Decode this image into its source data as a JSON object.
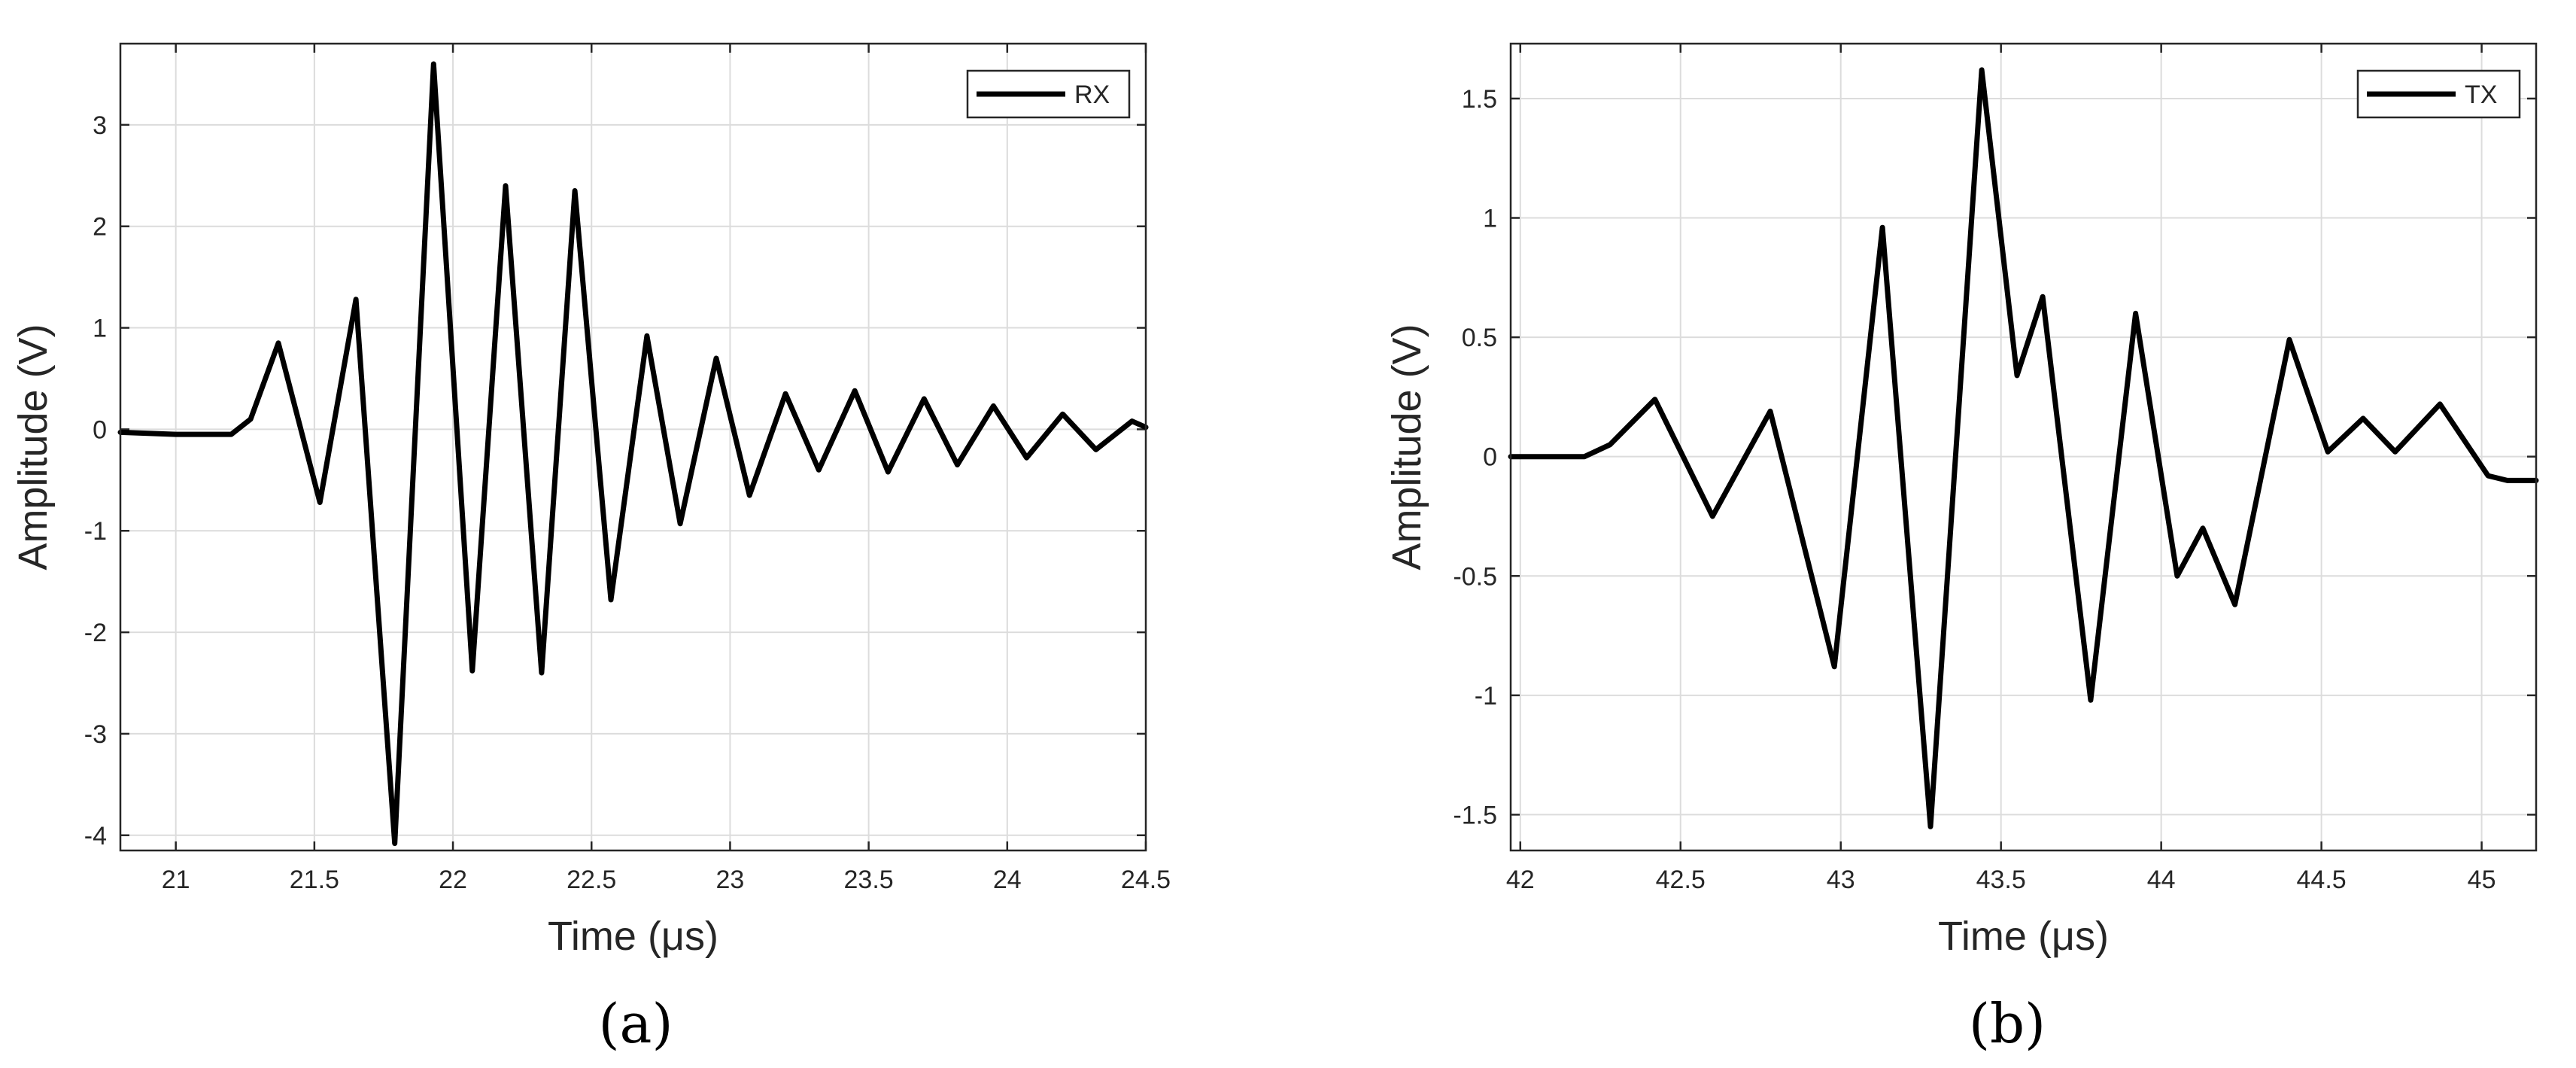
{
  "colors": {
    "line": "#000000",
    "grid": "#dcdcdc",
    "axis": "#262626"
  },
  "chart_data": [
    {
      "type": "line",
      "panel_label": "(a)",
      "xlabel": "Time (μs)",
      "ylabel": "Amplitude (V)",
      "xlim": [
        20.8,
        24.5
      ],
      "ylim": [
        -4.15,
        3.8
      ],
      "xticks": [
        21,
        21.5,
        22,
        22.5,
        23,
        23.5,
        24,
        24.5
      ],
      "xtick_labels": [
        "21",
        "21.5",
        "22",
        "22.5",
        "23",
        "23.5",
        "24",
        "24.5"
      ],
      "yticks": [
        -4,
        -3,
        -2,
        -1,
        0,
        1,
        2,
        3
      ],
      "ytick_labels": [
        "-4",
        "-3",
        "-2",
        "-1",
        "0",
        "1",
        "2",
        "3"
      ],
      "grid": true,
      "legend_position": "top-right",
      "series": [
        {
          "name": "RX",
          "points": [
            [
              20.8,
              -0.03
            ],
            [
              21.0,
              -0.05
            ],
            [
              21.2,
              -0.05
            ],
            [
              21.27,
              0.1
            ],
            [
              21.37,
              0.85
            ],
            [
              21.52,
              -0.72
            ],
            [
              21.65,
              1.28
            ],
            [
              21.79,
              -4.08
            ],
            [
              21.93,
              3.6
            ],
            [
              22.07,
              -2.38
            ],
            [
              22.19,
              2.4
            ],
            [
              22.32,
              -2.4
            ],
            [
              22.44,
              2.35
            ],
            [
              22.57,
              -1.68
            ],
            [
              22.7,
              0.92
            ],
            [
              22.82,
              -0.93
            ],
            [
              22.95,
              0.7
            ],
            [
              23.07,
              -0.65
            ],
            [
              23.2,
              0.35
            ],
            [
              23.32,
              -0.4
            ],
            [
              23.45,
              0.38
            ],
            [
              23.57,
              -0.42
            ],
            [
              23.7,
              0.3
            ],
            [
              23.82,
              -0.35
            ],
            [
              23.95,
              0.23
            ],
            [
              24.07,
              -0.28
            ],
            [
              24.2,
              0.15
            ],
            [
              24.32,
              -0.2
            ],
            [
              24.45,
              0.08
            ],
            [
              24.5,
              0.02
            ]
          ]
        }
      ]
    },
    {
      "type": "line",
      "panel_label": "(b)",
      "xlabel": "Time (μs)",
      "ylabel": "Amplitude (V)",
      "xlim": [
        41.97,
        45.17
      ],
      "ylim": [
        -1.65,
        1.73
      ],
      "xticks": [
        42,
        42.5,
        43,
        43.5,
        44,
        44.5,
        45
      ],
      "xtick_labels": [
        "42",
        "42.5",
        "43",
        "43.5",
        "44",
        "44.5",
        "45"
      ],
      "yticks": [
        -1.5,
        -1,
        -0.5,
        0,
        0.5,
        1,
        1.5
      ],
      "ytick_labels": [
        "-1.5",
        "-1",
        "-0.5",
        "0",
        "0.5",
        "1",
        "1.5"
      ],
      "grid": true,
      "legend_position": "top-right",
      "series": [
        {
          "name": "TX",
          "points": [
            [
              41.97,
              0.0
            ],
            [
              42.2,
              0.0
            ],
            [
              42.28,
              0.05
            ],
            [
              42.42,
              0.24
            ],
            [
              42.6,
              -0.25
            ],
            [
              42.78,
              0.19
            ],
            [
              42.98,
              -0.88
            ],
            [
              43.13,
              0.96
            ],
            [
              43.28,
              -1.55
            ],
            [
              43.44,
              1.62
            ],
            [
              43.55,
              0.34
            ],
            [
              43.63,
              0.67
            ],
            [
              43.78,
              -1.02
            ],
            [
              43.92,
              0.6
            ],
            [
              44.05,
              -0.5
            ],
            [
              44.13,
              -0.3
            ],
            [
              44.23,
              -0.62
            ],
            [
              44.4,
              0.49
            ],
            [
              44.52,
              0.02
            ],
            [
              44.63,
              0.16
            ],
            [
              44.73,
              0.02
            ],
            [
              44.87,
              0.22
            ],
            [
              45.02,
              -0.08
            ],
            [
              45.08,
              -0.1
            ],
            [
              45.17,
              -0.1
            ]
          ]
        }
      ]
    }
  ]
}
